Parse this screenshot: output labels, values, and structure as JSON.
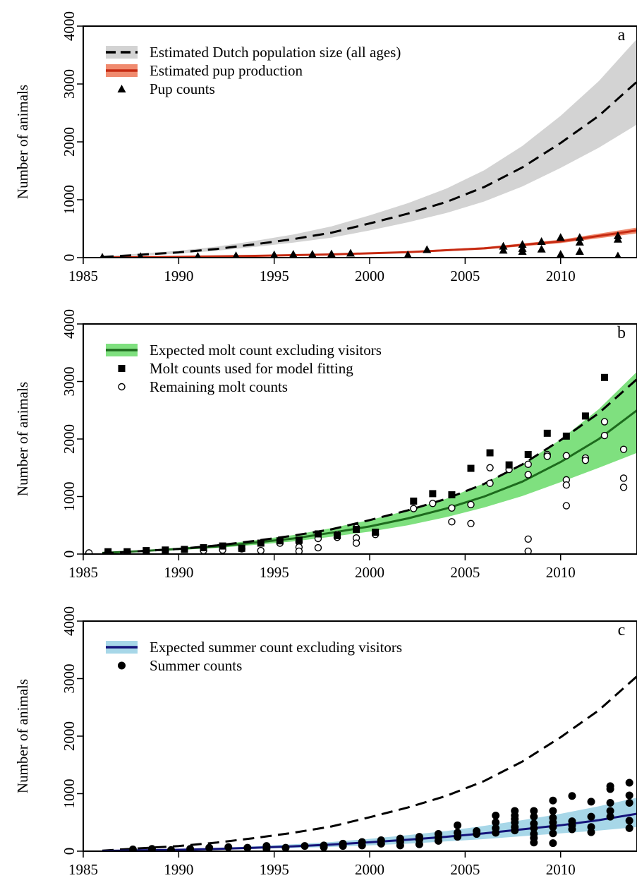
{
  "chart_data": [
    {
      "panel": "a",
      "type": "line",
      "panel_label": "a",
      "ylabel": "Number of animals",
      "xlabel": "",
      "xlim": [
        1985,
        2014
      ],
      "ylim": [
        0,
        4000
      ],
      "xticks": [
        "1985",
        "1990",
        "1995",
        "2000",
        "2005",
        "2010"
      ],
      "yticks": [
        "0",
        "1000",
        "2000",
        "3000",
        "4000"
      ],
      "legend_position": "top-left",
      "legend": [
        {
          "label": "Estimated Dutch population size (all ages)",
          "style": "dashed-band",
          "line_color": "#000000",
          "band_color": "#d3d3d3"
        },
        {
          "label": "Estimated pup production",
          "style": "solid-band",
          "line_color": "#c62a12",
          "band_color": "#f08a6e"
        },
        {
          "label": "Pup counts",
          "style": "triangle",
          "color": "#000000"
        }
      ],
      "series": [
        {
          "role": "population_mean",
          "style": "dashed",
          "color": "#000000",
          "x": [
            1986,
            1988,
            1990,
            1992,
            1994,
            1996,
            1998,
            2000,
            2002,
            2004,
            2006,
            2008,
            2010,
            2012,
            2014
          ],
          "y": [
            10,
            50,
            90,
            150,
            230,
            320,
            430,
            590,
            760,
            960,
            1220,
            1560,
            1980,
            2450,
            3040
          ]
        },
        {
          "role": "population_lower",
          "style": "band",
          "color": "#d3d3d3",
          "x": [
            1986,
            1988,
            1990,
            1992,
            1994,
            1996,
            1998,
            2000,
            2002,
            2004,
            2006,
            2008,
            2010,
            2012,
            2014
          ],
          "y": [
            5,
            35,
            70,
            120,
            185,
            260,
            345,
            470,
            610,
            770,
            970,
            1230,
            1550,
            1900,
            2300
          ]
        },
        {
          "role": "population_upper",
          "style": "band",
          "color": "#d3d3d3",
          "x": [
            1986,
            1988,
            1990,
            1992,
            1994,
            1996,
            1998,
            2000,
            2002,
            2004,
            2006,
            2008,
            2010,
            2012,
            2014
          ],
          "y": [
            20,
            70,
            120,
            190,
            290,
            400,
            540,
            730,
            940,
            1190,
            1510,
            1930,
            2450,
            3050,
            3780
          ]
        },
        {
          "role": "pup_mean",
          "style": "solid",
          "color": "#c62a12",
          "x": [
            1986,
            1990,
            1994,
            1998,
            2002,
            2006,
            2010,
            2014
          ],
          "y": [
            2,
            12,
            30,
            55,
            95,
            160,
            280,
            470
          ]
        },
        {
          "role": "pup_lower",
          "style": "band",
          "color": "#f08a6e",
          "x": [
            1986,
            1990,
            1994,
            1998,
            2002,
            2006,
            2010,
            2014
          ],
          "y": [
            1,
            8,
            22,
            45,
            80,
            140,
            250,
            420
          ]
        },
        {
          "role": "pup_upper",
          "style": "band",
          "color": "#f08a6e",
          "x": [
            1986,
            1990,
            1994,
            1998,
            2002,
            2006,
            2010,
            2014
          ],
          "y": [
            4,
            16,
            38,
            65,
            110,
            180,
            310,
            520
          ]
        },
        {
          "role": "pup_counts",
          "style": "triangle",
          "color": "#000000",
          "x": [
            1986,
            1988,
            1991,
            1993,
            1995,
            1996,
            1997,
            1998,
            1999,
            2002,
            2003,
            2007,
            2007,
            2008,
            2008,
            2008,
            2009,
            2009,
            2010,
            2010,
            2011,
            2011,
            2011,
            2013,
            2013,
            2013
          ],
          "y": [
            8,
            20,
            25,
            35,
            50,
            60,
            60,
            65,
            80,
            50,
            140,
            130,
            200,
            110,
            160,
            230,
            150,
            280,
            350,
            60,
            270,
            350,
            110,
            320,
            380,
            30
          ]
        }
      ]
    },
    {
      "panel": "b",
      "type": "line",
      "panel_label": "b",
      "ylabel": "Number of animals",
      "xlabel": "",
      "xlim": [
        1985,
        2014
      ],
      "ylim": [
        0,
        4000
      ],
      "xticks": [
        "1985",
        "1990",
        "1995",
        "2000",
        "2005",
        "2010"
      ],
      "yticks": [
        "0",
        "1000",
        "2000",
        "3000",
        "4000"
      ],
      "legend_position": "top-left",
      "legend": [
        {
          "label": "Expected molt count excluding visitors",
          "style": "solid-band",
          "line_color": "#1d6b1d",
          "band_color": "#7fe07f"
        },
        {
          "label": "Molt counts used for model fitting",
          "style": "square",
          "color": "#000000"
        },
        {
          "label": "Remaining molt counts",
          "style": "open-circle",
          "color": "#000000"
        }
      ],
      "series": [
        {
          "role": "population_mean",
          "style": "dashed",
          "color": "#000000",
          "x": [
            1986,
            1988,
            1990,
            1992,
            1994,
            1996,
            1998,
            2000,
            2002,
            2004,
            2006,
            2008,
            2010,
            2012,
            2014
          ],
          "y": [
            10,
            50,
            90,
            150,
            230,
            320,
            430,
            590,
            760,
            960,
            1220,
            1560,
            1980,
            2450,
            3040
          ]
        },
        {
          "role": "molt_mean",
          "style": "solid",
          "color": "#1d6b1d",
          "x": [
            1986,
            1988,
            1990,
            1992,
            1994,
            1996,
            1998,
            2000,
            2002,
            2004,
            2006,
            2008,
            2010,
            2012,
            2014
          ],
          "y": [
            20,
            50,
            90,
            130,
            200,
            270,
            370,
            480,
            620,
            790,
            1000,
            1260,
            1600,
            2000,
            2500
          ]
        },
        {
          "role": "molt_lower",
          "style": "band",
          "color": "#7fe07f",
          "x": [
            1986,
            1988,
            1990,
            1992,
            1994,
            1996,
            1998,
            2000,
            2002,
            2004,
            2006,
            2008,
            2010,
            2012,
            2014
          ],
          "y": [
            15,
            40,
            70,
            105,
            160,
            220,
            300,
            390,
            500,
            640,
            810,
            1010,
            1250,
            1500,
            1760
          ]
        },
        {
          "role": "molt_upper",
          "style": "band",
          "color": "#7fe07f",
          "x": [
            1986,
            1988,
            1990,
            1992,
            1994,
            1996,
            1998,
            2000,
            2002,
            2004,
            2006,
            2008,
            2010,
            2012,
            2014
          ],
          "y": [
            25,
            65,
            110,
            160,
            240,
            330,
            450,
            590,
            760,
            960,
            1230,
            1560,
            1990,
            2520,
            3170
          ]
        },
        {
          "role": "molt_counts_fitting",
          "style": "square",
          "color": "#000000",
          "x": [
            1986.3,
            1987.3,
            1988.3,
            1989.3,
            1990.3,
            1991.3,
            1992.3,
            1993.3,
            1994.3,
            1995.3,
            1996.3,
            1997.3,
            1998.3,
            1999.3,
            2000.3,
            2002.3,
            2003.3,
            2004.3,
            2005.3,
            2006.3,
            2007.3,
            2008.3,
            2009.3,
            2010.3,
            2011.3,
            2012.3
          ],
          "y": [
            40,
            40,
            60,
            70,
            80,
            110,
            140,
            100,
            190,
            230,
            240,
            350,
            320,
            430,
            380,
            920,
            1050,
            1030,
            1490,
            1760,
            1550,
            1730,
            2100,
            2050,
            2400,
            3070
          ]
        },
        {
          "role": "remaining_molt_counts",
          "style": "open-circle",
          "color": "#000000",
          "x": [
            1985.3,
            1986.3,
            1987.3,
            1988.3,
            1989.3,
            1991.3,
            1992.3,
            1993.3,
            1994.3,
            1995.3,
            1996.3,
            1996.3,
            1996.3,
            1997.3,
            1997.3,
            1998.3,
            1998.3,
            1999.3,
            1999.3,
            1999.3,
            2000.3,
            2002.3,
            2003.3,
            2004.3,
            2004.3,
            2005.3,
            2005.3,
            2006.3,
            2006.3,
            2007.3,
            2008.3,
            2008.3,
            2008.3,
            2008.3,
            2009.3,
            2009.3,
            2010.3,
            2010.3,
            2010.3,
            2010.3,
            2011.3,
            2011.3,
            2012.3,
            2012.3,
            2013.3,
            2013.3,
            2013.3
          ],
          "y": [
            20,
            30,
            20,
            50,
            60,
            60,
            70,
            90,
            60,
            190,
            210,
            120,
            50,
            270,
            110,
            290,
            340,
            460,
            280,
            190,
            340,
            790,
            880,
            800,
            560,
            860,
            530,
            1500,
            1230,
            1470,
            1560,
            1380,
            260,
            50,
            1730,
            1700,
            1710,
            1290,
            1200,
            840,
            1670,
            1630,
            2300,
            2060,
            1820,
            1320,
            1160
          ]
        }
      ]
    },
    {
      "panel": "c",
      "type": "line",
      "panel_label": "c",
      "ylabel": "Number of animals",
      "xlabel": "",
      "xlim": [
        1985,
        2014
      ],
      "ylim": [
        0,
        4000
      ],
      "xticks": [
        "1985",
        "1990",
        "1995",
        "2000",
        "2005",
        "2010"
      ],
      "yticks": [
        "0",
        "1000",
        "2000",
        "3000",
        "4000"
      ],
      "legend_position": "top-left",
      "legend": [
        {
          "label": "Expected summer count excluding visitors",
          "style": "solid-band",
          "line_color": "#14137a",
          "band_color": "#a7d7e8"
        },
        {
          "label": "Summer counts",
          "style": "filled-circle",
          "color": "#000000"
        }
      ],
      "series": [
        {
          "role": "population_mean",
          "style": "dashed",
          "color": "#000000",
          "x": [
            1986,
            1988,
            1990,
            1992,
            1994,
            1996,
            1998,
            2000,
            2002,
            2004,
            2006,
            2008,
            2010,
            2012,
            2014
          ],
          "y": [
            10,
            50,
            90,
            150,
            230,
            320,
            430,
            590,
            760,
            960,
            1220,
            1560,
            1980,
            2450,
            3040
          ]
        },
        {
          "role": "summer_mean",
          "style": "solid",
          "color": "#14137a",
          "x": [
            1986,
            1988,
            1990,
            1992,
            1994,
            1996,
            1998,
            2000,
            2002,
            2004,
            2006,
            2008,
            2010,
            2012,
            2014
          ],
          "y": [
            5,
            15,
            25,
            40,
            60,
            85,
            115,
            155,
            200,
            250,
            310,
            380,
            450,
            540,
            650
          ]
        },
        {
          "role": "summer_lower",
          "style": "band",
          "color": "#a7d7e8",
          "x": [
            1986,
            1988,
            1990,
            1992,
            1994,
            1996,
            1998,
            2000,
            2002,
            2004,
            2006,
            2008,
            2010,
            2012,
            2014
          ],
          "y": [
            2,
            8,
            15,
            25,
            40,
            55,
            75,
            100,
            130,
            170,
            210,
            260,
            310,
            360,
            420
          ]
        },
        {
          "role": "summer_upper",
          "style": "band",
          "color": "#a7d7e8",
          "x": [
            1986,
            1988,
            1990,
            1992,
            1994,
            1996,
            1998,
            2000,
            2002,
            2004,
            2006,
            2008,
            2010,
            2012,
            2014
          ],
          "y": [
            10,
            25,
            40,
            60,
            85,
            120,
            160,
            215,
            280,
            350,
            440,
            540,
            650,
            780,
            930
          ]
        },
        {
          "role": "summer_counts",
          "style": "filled-circle",
          "color": "#000000",
          "x": [
            1987.6,
            1988.6,
            1989.6,
            1990.6,
            1991.6,
            1992.6,
            1993.6,
            1994.6,
            1994.6,
            1995.6,
            1996.6,
            1997.6,
            1997.6,
            1998.6,
            1998.6,
            1999.6,
            1999.6,
            2000.6,
            2000.6,
            2001.6,
            2001.6,
            2001.6,
            2002.6,
            2002.6,
            2002.6,
            2003.6,
            2003.6,
            2003.6,
            2004.6,
            2004.6,
            2004.6,
            2005.6,
            2005.6,
            2006.6,
            2006.6,
            2006.6,
            2006.6,
            2007.6,
            2007.6,
            2007.6,
            2007.6,
            2007.6,
            2007.6,
            2008.6,
            2008.6,
            2008.6,
            2008.6,
            2008.6,
            2008.6,
            2008.6,
            2009.6,
            2009.6,
            2009.6,
            2009.6,
            2009.6,
            2009.6,
            2009.6,
            2010.6,
            2010.6,
            2010.6,
            2010.6,
            2011.6,
            2011.6,
            2011.6,
            2011.6,
            2012.6,
            2012.6,
            2012.6,
            2012.6,
            2012.6,
            2013.6,
            2013.6,
            2013.6,
            2013.6,
            2013.6
          ],
          "y": [
            30,
            40,
            20,
            40,
            60,
            70,
            60,
            90,
            40,
            60,
            90,
            100,
            70,
            130,
            90,
            160,
            100,
            190,
            130,
            220,
            160,
            100,
            250,
            200,
            120,
            300,
            240,
            180,
            450,
            320,
            250,
            350,
            300,
            620,
            500,
            400,
            320,
            700,
            620,
            560,
            500,
            420,
            360,
            700,
            600,
            480,
            400,
            300,
            230,
            150,
            880,
            700,
            580,
            500,
            420,
            310,
            140,
            960,
            520,
            450,
            380,
            860,
            600,
            420,
            330,
            1130,
            1080,
            840,
            700,
            600,
            1190,
            970,
            840,
            530,
            400
          ]
        }
      ]
    }
  ]
}
